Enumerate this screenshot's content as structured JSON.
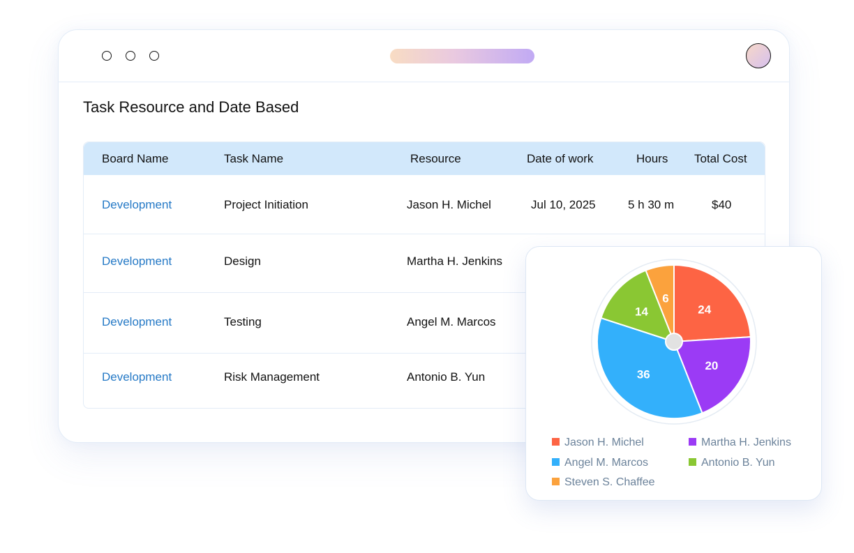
{
  "report": {
    "title": "Task Resource and Date Based"
  },
  "table": {
    "headers": [
      "Board Name",
      "Task Name",
      "Resource",
      "Date of work",
      "Hours",
      "Total Cost"
    ],
    "rows": [
      {
        "board": "Development",
        "task": "Project Initiation",
        "resource": "Jason H. Michel",
        "date": "Jul 10, 2025",
        "hours": "5 h 30 m",
        "cost": "$40"
      },
      {
        "board": "Development",
        "task": "Design",
        "resource": "Martha H. Jenkins",
        "date": "",
        "hours": "",
        "cost": ""
      },
      {
        "board": "Development",
        "task": "Testing",
        "resource": "Angel M. Marcos",
        "date": "",
        "hours": "",
        "cost": ""
      },
      {
        "board": "Development",
        "task": "Risk Management",
        "resource": "Antonio B. Yun",
        "date": "",
        "hours": "",
        "cost": ""
      }
    ]
  },
  "chart_data": {
    "type": "pie",
    "title": "",
    "labels": [
      "Jason H. Michel",
      "Martha H. Jenkins",
      "Angel M. Marcos",
      "Antonio B. Yun",
      "Steven S. Chaffee"
    ],
    "values": [
      24,
      20,
      36,
      14,
      6
    ],
    "colors": [
      "#fd6444",
      "#9b3bf5",
      "#33b0fb",
      "#8ac733",
      "#fba23d"
    ],
    "legend_position": "bottom"
  },
  "colors": {
    "link": "#2579c6",
    "header_bg": "#d2e8fb",
    "border": "#e3ecf7"
  }
}
